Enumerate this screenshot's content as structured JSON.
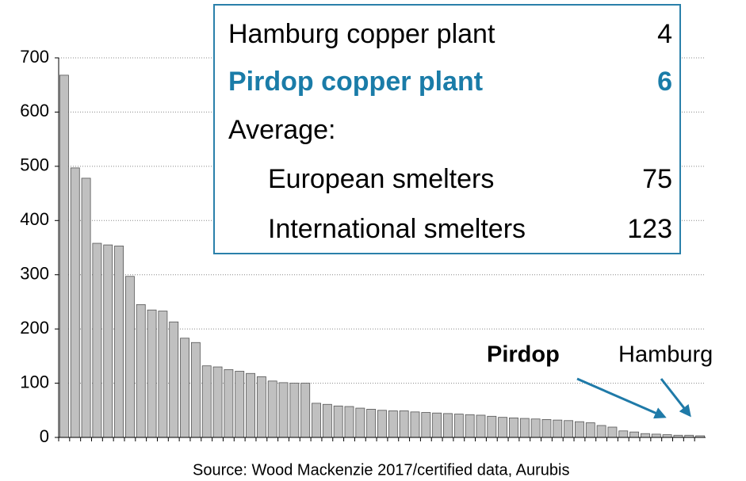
{
  "chart_data": {
    "type": "bar",
    "values": [
      668,
      497,
      478,
      358,
      355,
      353,
      297,
      245,
      235,
      233,
      213,
      183,
      175,
      132,
      130,
      125,
      122,
      118,
      112,
      104,
      101,
      100,
      100,
      63,
      61,
      58,
      57,
      54,
      52,
      50,
      49,
      49,
      47,
      46,
      45,
      44,
      43,
      42,
      41,
      39,
      37,
      36,
      35,
      34,
      33,
      32,
      31,
      29,
      27,
      22,
      19,
      12,
      10,
      7,
      6,
      5,
      4,
      4,
      3
    ],
    "color": "#c0c0c0",
    "ylim": [
      0,
      700
    ],
    "yticks": [
      0,
      100,
      200,
      300,
      400,
      500,
      600,
      700
    ],
    "grid": true,
    "annotations": [
      "Pirdop",
      "Hamburg"
    ],
    "table": {
      "rows": [
        [
          "Hamburg copper plant",
          4
        ],
        [
          "Pirdop copper plant",
          6
        ],
        [
          "Average:"
        ],
        [
          "European smelters",
          75
        ],
        [
          "International smelters",
          123
        ]
      ]
    },
    "source": "Source: Wood Mackenzie 2017/certified data, Aurubis"
  }
}
